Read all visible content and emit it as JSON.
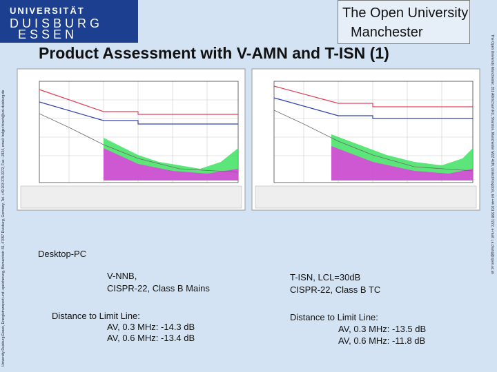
{
  "logo": {
    "line1": "UNIVERSITÄT",
    "line2": "D U I S B U R G",
    "line3": "E S S E N"
  },
  "partner": {
    "line1": "The Open University",
    "line2": "Manchester"
  },
  "title": "Product Assessment with V-AMN and T-ISN (1)",
  "side_left": "University Duisburg-Essen, Energietransport und -speicherung, Bismarckstr. 81, 47057 Duisburg, Germany, Tel. +49 203 379-3372, Fax: -2824, email: holger.hirsch@uni-duisburg.de",
  "side_right": "The Open University Manchester, 351 Altrincham Rd, Sharston, Manchester M22 4UN, United Kingdom, tel +44 161 998 7272, e-mail: j.a.chang@open.ac.uk",
  "device": "Desktop-PC",
  "left": {
    "setup1": "V-NNB,",
    "setup2": "CISPR-22, Class B Mains",
    "distance": "Distance to Limit Line:",
    "av1": "AV, 0.3 MHz: -14.3 dB",
    "av2": "AV, 0.6 MHz: -13.4 dB"
  },
  "right": {
    "setup1": "T-ISN, LCL=30dB",
    "setup2": "CISPR-22, Class B TC",
    "distance": "Distance to Limit Line:",
    "av1": "AV, 0.3 MHz: -13.5 dB",
    "av2": "AV, 0.6 MHz: -11.8 dB"
  }
}
